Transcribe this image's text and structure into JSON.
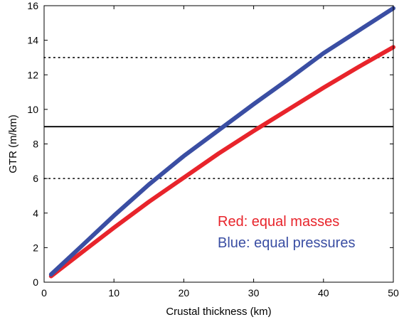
{
  "chart_data": {
    "type": "line",
    "xlabel": "Crustal thickness (km)",
    "ylabel": "GTR (m/km)",
    "xlim": [
      0,
      50
    ],
    "ylim": [
      0,
      16
    ],
    "x_ticks": [
      0,
      10,
      20,
      30,
      40,
      50
    ],
    "y_ticks": [
      0,
      2,
      4,
      6,
      8,
      10,
      12,
      14,
      16
    ],
    "grid": false,
    "series": [
      {
        "name": "Red: equal masses",
        "color": "#e8242b",
        "x": [
          1,
          5,
          10,
          15,
          20,
          25,
          30,
          35,
          40,
          45,
          50
        ],
        "y": [
          0.35,
          1.6,
          3.15,
          4.65,
          6.05,
          7.45,
          8.75,
          10.0,
          11.25,
          12.45,
          13.6
        ]
      },
      {
        "name": "Blue: equal pressures",
        "color": "#3a4ea3",
        "x": [
          1,
          5,
          10,
          15,
          20,
          25,
          30,
          35,
          40,
          45,
          50
        ],
        "y": [
          0.45,
          1.95,
          3.85,
          5.65,
          7.3,
          8.8,
          10.3,
          11.75,
          13.25,
          14.55,
          15.85
        ]
      }
    ],
    "reference_lines": [
      {
        "y": 13,
        "style": "dotted",
        "color": "#000000"
      },
      {
        "y": 9,
        "style": "solid",
        "color": "#000000"
      },
      {
        "y": 6,
        "style": "dotted",
        "color": "#000000"
      }
    ],
    "legend": [
      {
        "text": "Red: equal masses",
        "color": "#e8242b"
      },
      {
        "text": "Blue: equal pressures",
        "color": "#3a4ea3"
      }
    ],
    "legend_placement": "bottom-right"
  }
}
